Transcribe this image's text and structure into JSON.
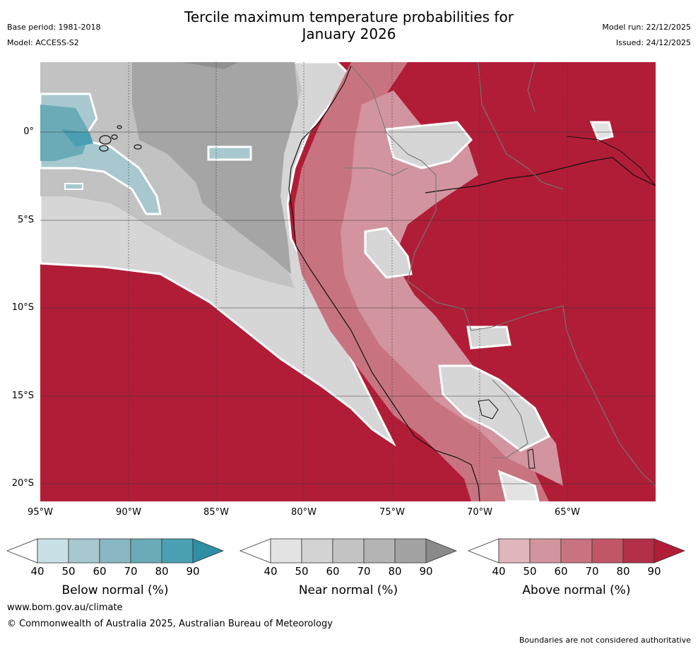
{
  "header": {
    "title_line1": "Tercile maximum temperature probabilities for",
    "title_line2": "January 2026",
    "base_period": "Base period: 1981-2018",
    "model": "Model: ACCESS-S2",
    "model_run": "Model run: 22/12/2025",
    "issued": "Issued: 24/12/2025"
  },
  "map": {
    "lat_labels": [
      "0°",
      "5°S",
      "10°S",
      "15°S",
      "20°S"
    ],
    "lon_labels": [
      "95°W",
      "90°W",
      "85°W",
      "80°W",
      "75°W",
      "70°W",
      "65°W"
    ],
    "region": "Tropical eastern Pacific and western South America"
  },
  "legends": [
    {
      "label": "Below normal (%)",
      "ticks": [
        "40",
        "50",
        "60",
        "70",
        "80",
        "90"
      ],
      "colors": [
        "#ffffff",
        "#c8e1e6",
        "#a7c8cf",
        "#88b7c3",
        "#6aabb7",
        "#4aa0b2",
        "#2e8ea3"
      ]
    },
    {
      "label": "Near normal (%)",
      "ticks": [
        "40",
        "50",
        "60",
        "70",
        "80",
        "90"
      ],
      "colors": [
        "#ffffff",
        "#e3e3e3",
        "#d3d3d3",
        "#c4c4c4",
        "#b4b4b4",
        "#a3a3a3",
        "#8a8a8a"
      ]
    },
    {
      "label": "Above normal (%)",
      "ticks": [
        "40",
        "50",
        "60",
        "70",
        "80",
        "90"
      ],
      "colors": [
        "#ffffff",
        "#e0b5bc",
        "#d2949e",
        "#c87480",
        "#c15668",
        "#b32e48",
        "#b11d37"
      ]
    }
  ],
  "footer": {
    "website": "www.bom.gov.au/climate",
    "copyright": "© Commonwealth of Australia 2025, Australian Bureau of Meteorology",
    "disclaimer": "Boundaries are not considered authoritative"
  }
}
